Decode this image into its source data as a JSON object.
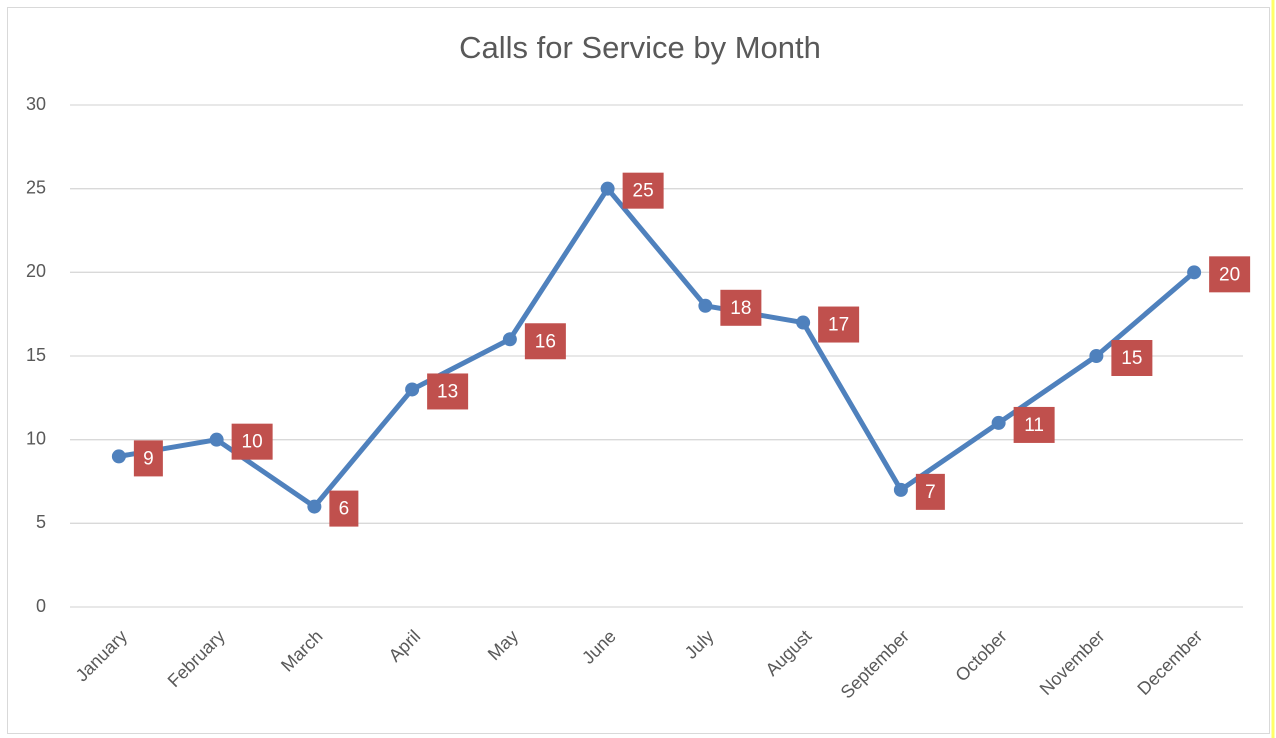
{
  "chart_data": {
    "type": "line",
    "title": "Calls for Service by Month",
    "categories": [
      "January",
      "February",
      "March",
      "April",
      "May",
      "June",
      "July",
      "August",
      "September",
      "October",
      "November",
      "December"
    ],
    "series": [
      {
        "name": "Calls",
        "color": "#4f81bd",
        "values": [
          9,
          10,
          6,
          13,
          16,
          25,
          18,
          17,
          7,
          11,
          15,
          20
        ]
      }
    ],
    "label_color": "#c0504d",
    "ylim": [
      0,
      30
    ],
    "yticks": [
      0,
      5,
      10,
      15,
      20,
      25,
      30
    ],
    "grid": true
  }
}
